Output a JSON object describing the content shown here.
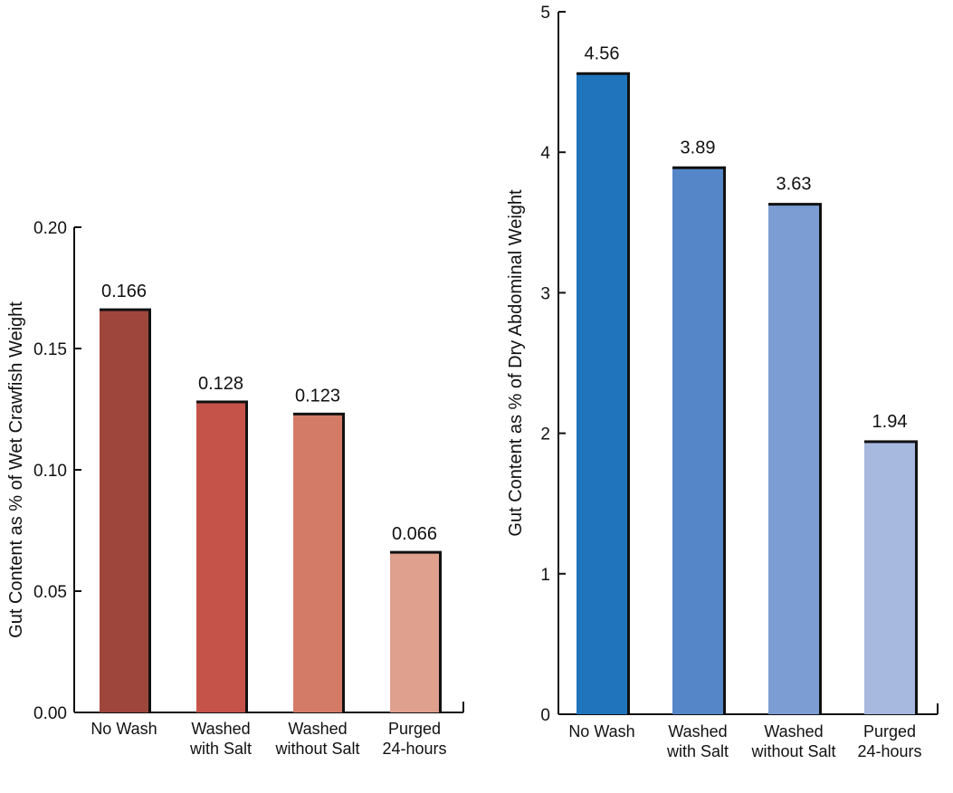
{
  "chart_data": [
    {
      "type": "bar",
      "title": "",
      "xlabel": "",
      "ylabel": "Gut Content as % of Wet Crawfish Weight",
      "ylim": [
        0,
        0.2
      ],
      "yticks": [
        "0.00",
        "0.05",
        "0.10",
        "0.15",
        "0.20"
      ],
      "categories": [
        [
          "No Wash"
        ],
        [
          "Washed",
          "with Salt"
        ],
        [
          "Washed",
          "without Salt"
        ],
        [
          "Purged",
          "24-hours"
        ]
      ],
      "values": [
        0.166,
        0.128,
        0.123,
        0.066
      ],
      "value_labels": [
        "0.166",
        "0.128",
        "0.123",
        "0.066"
      ],
      "colors": [
        "#9e463b",
        "#c6534a",
        "#d47b68",
        "#dfa08e"
      ],
      "grid": false
    },
    {
      "type": "bar",
      "title": "",
      "xlabel": "",
      "ylabel": "Gut Content as % of Dry Abdominal Weight",
      "ylim": [
        0,
        5
      ],
      "yticks": [
        "0",
        "1",
        "2",
        "3",
        "4",
        "5"
      ],
      "categories": [
        [
          "No Wash"
        ],
        [
          "Washed",
          "with Salt"
        ],
        [
          "Washed",
          "without Salt"
        ],
        [
          "Purged",
          "24-hours"
        ]
      ],
      "values": [
        4.56,
        3.89,
        3.63,
        1.94
      ],
      "value_labels": [
        "4.56",
        "3.89",
        "3.63",
        "1.94"
      ],
      "colors": [
        "#1f74bb",
        "#5586c8",
        "#7b9dd3",
        "#a7b9df"
      ],
      "grid": false
    }
  ]
}
